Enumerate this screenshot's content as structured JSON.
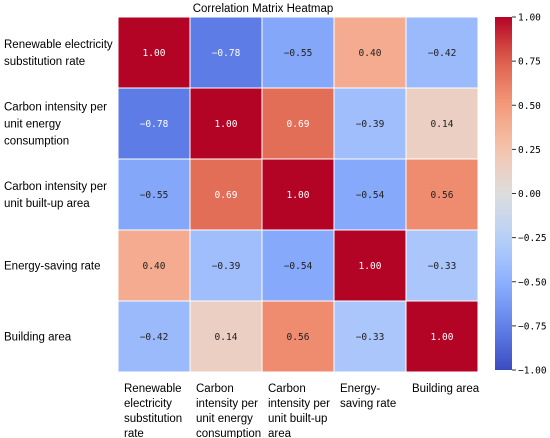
{
  "chart_data": {
    "type": "heatmap",
    "title": "Correlation Matrix Heatmap",
    "row_labels": [
      [
        "Renewable electricity",
        "substitution rate"
      ],
      [
        "Carbon intensity per",
        "unit energy",
        "consumption"
      ],
      [
        "Carbon intensity per",
        "unit built-up area"
      ],
      [
        "Energy-saving rate"
      ],
      [
        "Building area"
      ]
    ],
    "col_labels": [
      [
        "Renewable",
        "electricity",
        "substitution",
        "rate"
      ],
      [
        "Carbon",
        "intensity per",
        "unit energy",
        "consumption"
      ],
      [
        "Carbon",
        "intensity per",
        "unit built-up",
        "area"
      ],
      [
        "Energy-",
        "saving rate"
      ],
      [
        "Building area"
      ]
    ],
    "matrix": [
      [
        1.0,
        -0.78,
        -0.55,
        0.4,
        -0.42
      ],
      [
        -0.78,
        1.0,
        0.69,
        -0.39,
        0.14
      ],
      [
        -0.55,
        0.69,
        1.0,
        -0.54,
        0.56
      ],
      [
        0.4,
        -0.39,
        -0.54,
        1.0,
        -0.33
      ],
      [
        -0.42,
        0.14,
        0.56,
        -0.33,
        1.0
      ]
    ],
    "colorbar": {
      "range": [
        -1.0,
        1.0
      ],
      "ticks": [
        "1.00",
        "0.75",
        "0.50",
        "0.25",
        "0.00",
        "-0.25",
        "-0.50",
        "-0.75",
        "-1.00"
      ],
      "tick_values": [
        1.0,
        0.75,
        0.5,
        0.25,
        0.0,
        -0.25,
        -0.5,
        -0.75,
        -1.0
      ],
      "colormap": "coolwarm",
      "placement": "right"
    }
  }
}
